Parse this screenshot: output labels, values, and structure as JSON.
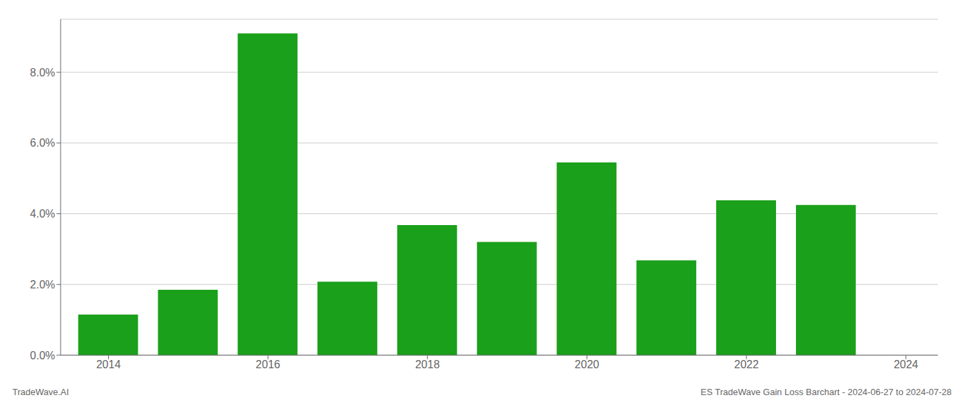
{
  "chart_data": {
    "type": "bar",
    "x": [
      2014,
      2015,
      2016,
      2017,
      2018,
      2019,
      2020,
      2021,
      2022,
      2023
    ],
    "values": [
      0.0115,
      0.0185,
      0.091,
      0.0208,
      0.0368,
      0.032,
      0.0545,
      0.0268,
      0.0438,
      0.0425
    ],
    "color": "#1aa01a",
    "xlim": [
      2013.4,
      2024.4
    ],
    "xticks": [
      2014,
      2016,
      2018,
      2020,
      2022,
      2024
    ],
    "ylim": [
      0,
      0.095
    ],
    "yticks": [
      {
        "value": 0.0,
        "label": "0.0%"
      },
      {
        "value": 0.02,
        "label": "2.0%"
      },
      {
        "value": 0.04,
        "label": "4.0%"
      },
      {
        "value": 0.06,
        "label": "6.0%"
      },
      {
        "value": 0.08,
        "label": "8.0%"
      }
    ],
    "grid": true,
    "annotations": [
      "TradeWave.AI",
      "ES TradeWave Gain Loss Barchart - 2024-06-27 to 2024-07-28"
    ]
  }
}
